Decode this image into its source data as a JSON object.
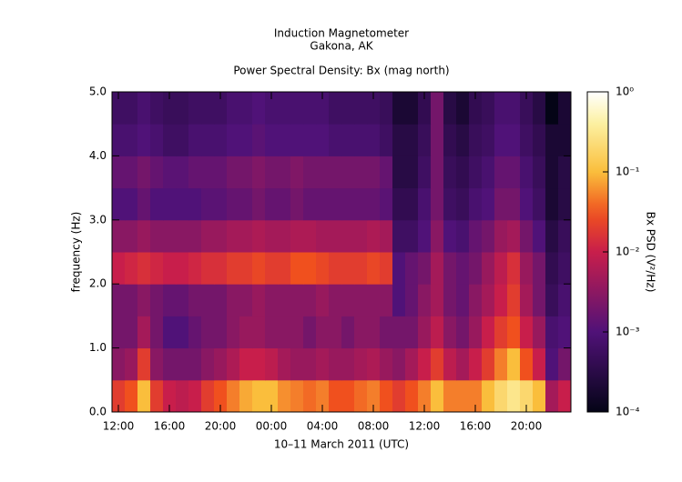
{
  "chart_data": {
    "type": "heatmap",
    "title": "Induction Magnetometer",
    "subtitle": "Gakona, AK",
    "plot_title": "Power Spectral Density: Bx (mag north)",
    "x_label": "10–11 March 2011 (UTC)",
    "y_label": "frequency (Hz)",
    "colorbar_label": "Bx PSD (V²/Hz)",
    "x": [
      12,
      13,
      14,
      15,
      16,
      17,
      18,
      19,
      20,
      21,
      22,
      23,
      24,
      25,
      26,
      27,
      28,
      29,
      30,
      31,
      32,
      33,
      34,
      35,
      36,
      37,
      38,
      39,
      40,
      41,
      42,
      43,
      44,
      45,
      46,
      47
    ],
    "y": [
      0.25,
      0.75,
      1.25,
      1.75,
      2.25,
      2.75,
      3.25,
      3.75,
      4.25,
      4.75
    ],
    "values": [
      [
        0.02,
        0.03,
        0.1,
        0.02,
        0.01,
        0.008,
        0.01,
        0.02,
        0.03,
        0.05,
        0.08,
        0.1,
        0.1,
        0.06,
        0.05,
        0.04,
        0.05,
        0.03,
        0.03,
        0.04,
        0.05,
        0.03,
        0.02,
        0.03,
        0.05,
        0.1,
        0.05,
        0.05,
        0.05,
        0.1,
        0.2,
        0.3,
        0.2,
        0.1,
        0.005,
        0.01
      ],
      [
        0.003,
        0.004,
        0.02,
        0.003,
        0.002,
        0.002,
        0.002,
        0.003,
        0.004,
        0.006,
        0.01,
        0.01,
        0.008,
        0.005,
        0.004,
        0.004,
        0.005,
        0.004,
        0.004,
        0.005,
        0.006,
        0.004,
        0.003,
        0.005,
        0.01,
        0.02,
        0.008,
        0.005,
        0.01,
        0.02,
        0.05,
        0.1,
        0.03,
        0.01,
        0.001,
        0.002
      ],
      [
        0.002,
        0.002,
        0.005,
        0.002,
        0.001,
        0.001,
        0.0015,
        0.002,
        0.002,
        0.003,
        0.004,
        0.004,
        0.003,
        0.003,
        0.003,
        0.002,
        0.003,
        0.003,
        0.002,
        0.003,
        0.003,
        0.002,
        0.002,
        0.002,
        0.004,
        0.008,
        0.003,
        0.002,
        0.004,
        0.01,
        0.02,
        0.03,
        0.01,
        0.004,
        0.0008,
        0.001
      ],
      [
        0.002,
        0.002,
        0.003,
        0.002,
        0.0015,
        0.0015,
        0.002,
        0.002,
        0.002,
        0.003,
        0.003,
        0.004,
        0.003,
        0.003,
        0.003,
        0.003,
        0.004,
        0.003,
        0.003,
        0.003,
        0.003,
        0.003,
        0.001,
        0.0015,
        0.003,
        0.005,
        0.002,
        0.0015,
        0.003,
        0.005,
        0.01,
        0.02,
        0.005,
        0.002,
        0.0005,
        0.0008
      ],
      [
        0.01,
        0.012,
        0.015,
        0.012,
        0.01,
        0.01,
        0.012,
        0.015,
        0.015,
        0.02,
        0.02,
        0.025,
        0.02,
        0.02,
        0.03,
        0.03,
        0.025,
        0.02,
        0.02,
        0.02,
        0.025,
        0.02,
        0.001,
        0.0015,
        0.002,
        0.005,
        0.002,
        0.0015,
        0.002,
        0.004,
        0.008,
        0.015,
        0.004,
        0.002,
        0.0004,
        0.0006
      ],
      [
        0.003,
        0.003,
        0.004,
        0.003,
        0.003,
        0.003,
        0.003,
        0.004,
        0.004,
        0.005,
        0.005,
        0.006,
        0.005,
        0.005,
        0.006,
        0.006,
        0.005,
        0.005,
        0.005,
        0.005,
        0.006,
        0.005,
        0.0006,
        0.0006,
        0.001,
        0.003,
        0.001,
        0.0008,
        0.0015,
        0.002,
        0.004,
        0.005,
        0.002,
        0.001,
        0.0003,
        0.0005
      ],
      [
        0.001,
        0.001,
        0.0015,
        0.001,
        0.001,
        0.001,
        0.001,
        0.0012,
        0.0012,
        0.0015,
        0.0015,
        0.002,
        0.0015,
        0.0015,
        0.002,
        0.0015,
        0.0015,
        0.0015,
        0.0015,
        0.0015,
        0.0015,
        0.0012,
        0.0004,
        0.0004,
        0.0008,
        0.002,
        0.0006,
        0.0005,
        0.0008,
        0.001,
        0.002,
        0.002,
        0.001,
        0.0006,
        0.0002,
        0.0003
      ],
      [
        0.0015,
        0.0015,
        0.002,
        0.0015,
        0.0012,
        0.0012,
        0.0015,
        0.0015,
        0.0015,
        0.002,
        0.002,
        0.0025,
        0.002,
        0.002,
        0.0025,
        0.002,
        0.002,
        0.002,
        0.002,
        0.002,
        0.002,
        0.0015,
        0.0003,
        0.0003,
        0.0006,
        0.002,
        0.0005,
        0.0004,
        0.0006,
        0.0008,
        0.0015,
        0.0015,
        0.0008,
        0.0005,
        0.0002,
        0.0003
      ],
      [
        0.0008,
        0.0008,
        0.001,
        0.0008,
        0.0006,
        0.0006,
        0.0008,
        0.0008,
        0.0008,
        0.001,
        0.001,
        0.0012,
        0.001,
        0.001,
        0.001,
        0.001,
        0.001,
        0.0008,
        0.0008,
        0.0008,
        0.0008,
        0.0006,
        0.0003,
        0.0003,
        0.0005,
        0.002,
        0.0004,
        0.0003,
        0.0005,
        0.0006,
        0.001,
        0.001,
        0.0006,
        0.0004,
        0.0002,
        0.0002
      ],
      [
        0.0006,
        0.0006,
        0.0008,
        0.0006,
        0.0005,
        0.0005,
        0.0006,
        0.0006,
        0.0006,
        0.0008,
        0.0008,
        0.001,
        0.0008,
        0.0008,
        0.0008,
        0.0008,
        0.0008,
        0.0006,
        0.0006,
        0.0006,
        0.0006,
        0.0005,
        0.0002,
        0.0002,
        0.0004,
        0.002,
        0.0003,
        0.0002,
        0.0004,
        0.0005,
        0.0008,
        0.0008,
        0.0005,
        0.0003,
        0.0001,
        0.0002
      ]
    ],
    "xlim": [
      11.5,
      47.5
    ],
    "xticks": [
      {
        "value": 12,
        "label": "12:00"
      },
      {
        "value": 16,
        "label": "16:00"
      },
      {
        "value": 20,
        "label": "20:00"
      },
      {
        "value": 24,
        "label": "00:00"
      },
      {
        "value": 28,
        "label": "04:00"
      },
      {
        "value": 32,
        "label": "08:00"
      },
      {
        "value": 36,
        "label": "12:00"
      },
      {
        "value": 40,
        "label": "16:00"
      },
      {
        "value": 44,
        "label": "20:00"
      }
    ],
    "ylim": [
      0,
      5
    ],
    "yticks": [
      {
        "value": 0,
        "label": "0.0"
      },
      {
        "value": 1,
        "label": "1.0"
      },
      {
        "value": 2,
        "label": "2.0"
      },
      {
        "value": 3,
        "label": "3.0"
      },
      {
        "value": 4,
        "label": "4.0"
      },
      {
        "value": 5,
        "label": "5.0"
      }
    ],
    "zscale": "log",
    "zlim": [
      0.0001,
      1
    ],
    "zticks": [
      {
        "value": 0.0001,
        "label": "10⁻⁴"
      },
      {
        "value": 0.001,
        "label": "10⁻³"
      },
      {
        "value": 0.01,
        "label": "10⁻²"
      },
      {
        "value": 0.1,
        "label": "10⁻¹"
      },
      {
        "value": 1,
        "label": "10⁰"
      }
    ]
  }
}
